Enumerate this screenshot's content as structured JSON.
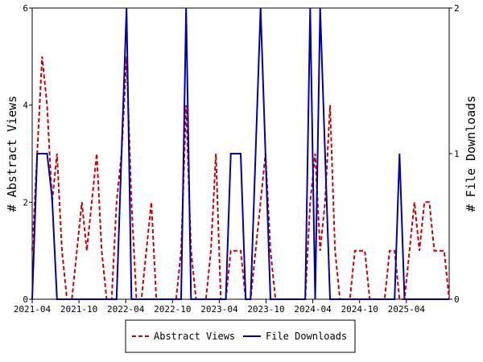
{
  "chart_data": {
    "type": "line",
    "x_labels": [
      "2021-04",
      "2021-10",
      "2022-04",
      "2022-10",
      "2023-04",
      "2023-10",
      "2024-04",
      "2024-10",
      "2025-04"
    ],
    "left_axis": {
      "label": "# Abstract Views",
      "range": [
        0,
        6
      ],
      "ticks": [
        "0",
        "2",
        "4",
        "6"
      ]
    },
    "right_axis": {
      "label": "# File Downloads",
      "range": [
        0,
        2
      ],
      "ticks": [
        "0",
        "1",
        "2"
      ]
    },
    "series": [
      {
        "name": "Abstract Views",
        "axis": "left",
        "color": "#cc0000",
        "style": "dashed",
        "values": [
          1,
          3,
          5,
          4,
          2,
          3,
          1,
          0,
          0,
          1,
          2,
          1,
          2,
          3,
          1,
          0,
          0,
          2,
          3,
          5,
          2,
          0,
          0,
          1,
          2,
          0,
          0,
          0,
          0,
          0,
          1,
          4,
          1,
          0,
          0,
          0,
          1,
          3,
          0,
          0,
          1,
          1,
          1,
          0,
          0,
          1,
          2,
          3,
          1,
          0,
          0,
          0,
          0,
          0,
          0,
          0,
          2,
          3,
          1,
          2,
          4,
          1,
          0,
          0,
          0,
          1,
          1,
          1,
          0,
          0,
          0,
          0,
          1,
          1,
          0,
          0,
          1,
          2,
          1,
          2,
          2,
          1,
          1,
          1,
          0
        ]
      },
      {
        "name": "File Downloads",
        "axis": "right",
        "color": "#0000aa",
        "style": "solid",
        "values": [
          0,
          1,
          1,
          1,
          0.7,
          0,
          0,
          0,
          0,
          0,
          0,
          0,
          0,
          0,
          0,
          0,
          0,
          0,
          1,
          2,
          0,
          0,
          0,
          0,
          0,
          0,
          0,
          0,
          0,
          0,
          0,
          2,
          0,
          0,
          0,
          0,
          0,
          0,
          0,
          0,
          1,
          1,
          1,
          0,
          0,
          1,
          2,
          1,
          0,
          0,
          0,
          0,
          0,
          0,
          0,
          0,
          2,
          0,
          2,
          1,
          0,
          0,
          0,
          0,
          0,
          0,
          0,
          0,
          0,
          0,
          0,
          0,
          0,
          0,
          1,
          0,
          0,
          0,
          0,
          0,
          0,
          0,
          0,
          0,
          0
        ]
      }
    ],
    "legend": {
      "placement": "bottom",
      "entries": [
        "Abstract Views",
        "File Downloads"
      ]
    }
  }
}
